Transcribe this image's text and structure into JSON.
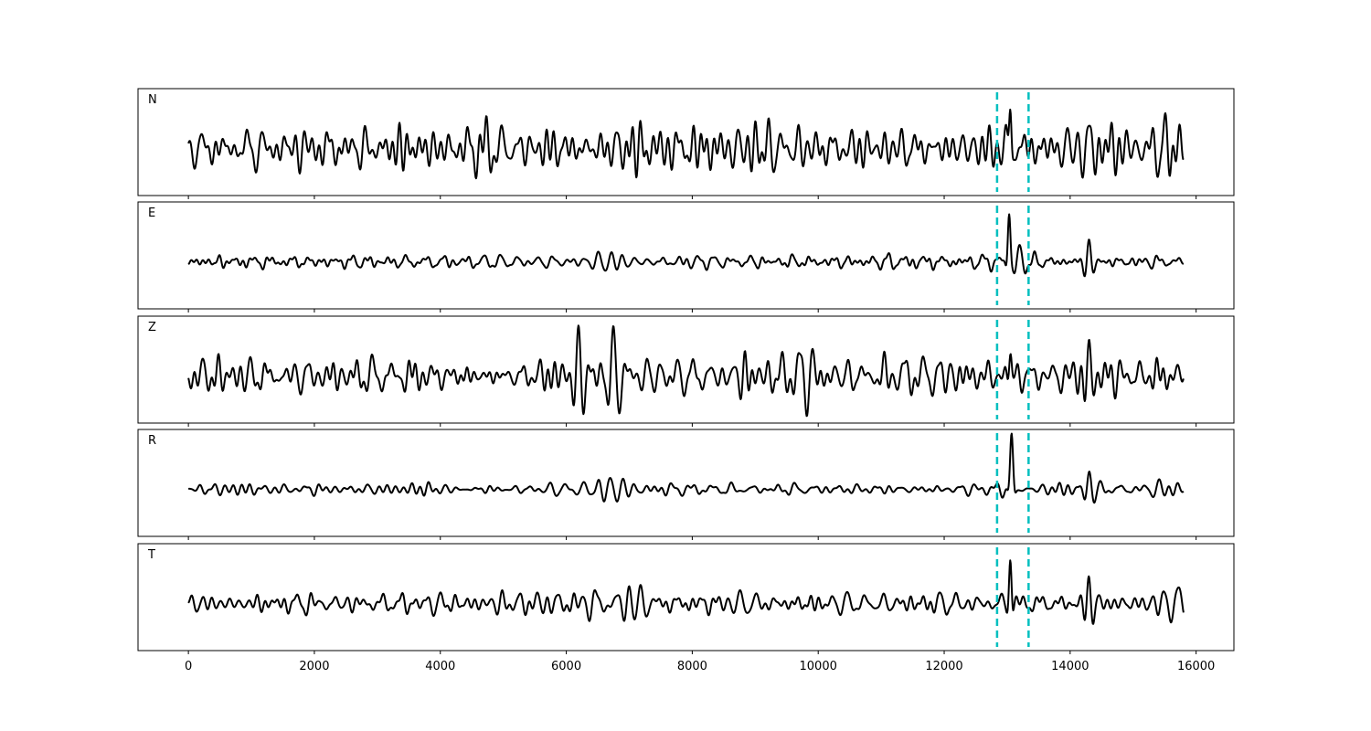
{
  "chart_data": {
    "type": "line",
    "xlim": [
      -800,
      16600
    ],
    "x_ticks": [
      0,
      2000,
      4000,
      6000,
      8000,
      10000,
      12000,
      14000,
      16000
    ],
    "tick_labels": [
      "0",
      "2000",
      "4000",
      "6000",
      "8000",
      "10000",
      "12000",
      "14000",
      "16000"
    ],
    "x_range": [
      0,
      15800
    ],
    "ylim": [
      -1,
      1
    ],
    "markers": {
      "color": "#00bfbf",
      "style": "dashed",
      "x": [
        12840,
        13340
      ]
    },
    "panels": [
      {
        "label": "N",
        "events": [
          {
            "x": 13050,
            "amp": 0.5,
            "width": 35,
            "period": 150
          },
          {
            "x": 7000,
            "amp": 0.3,
            "width": 250,
            "period": 190
          },
          {
            "x": 9200,
            "amp": 0.25,
            "width": 220,
            "period": 180
          },
          {
            "x": 15500,
            "amp": 0.35,
            "width": 250,
            "period": 200
          },
          {
            "x": 14300,
            "amp": 0.3,
            "width": 150,
            "period": 160
          }
        ],
        "noise": 0.16
      },
      {
        "label": "E",
        "events": [
          {
            "x": 13030,
            "amp": 0.55,
            "width": 40,
            "period": 170
          },
          {
            "x": 14300,
            "amp": 0.25,
            "width": 90,
            "period": 150
          },
          {
            "x": 6700,
            "amp": 0.15,
            "width": 300,
            "period": 200
          },
          {
            "x": 13200,
            "amp": 0.15,
            "width": 120,
            "period": 180
          }
        ],
        "noise": 0.05
      },
      {
        "label": "Z",
        "events": [
          {
            "x": 6200,
            "amp": 0.5,
            "width": 150,
            "period": 180
          },
          {
            "x": 6750,
            "amp": 0.45,
            "width": 160,
            "period": 190
          },
          {
            "x": 7300,
            "amp": 0.25,
            "width": 300,
            "period": 200
          },
          {
            "x": 9900,
            "amp": 0.25,
            "width": 150,
            "period": 180
          },
          {
            "x": 13050,
            "amp": 0.3,
            "width": 40,
            "period": 160
          },
          {
            "x": 14300,
            "amp": 0.25,
            "width": 120,
            "period": 150
          }
        ],
        "noise": 0.14
      },
      {
        "label": "R",
        "events": [
          {
            "x": 13070,
            "amp": 0.6,
            "width": 45,
            "period": 190
          },
          {
            "x": 14300,
            "amp": 0.25,
            "width": 110,
            "period": 170
          },
          {
            "x": 6700,
            "amp": 0.12,
            "width": 350,
            "period": 200
          },
          {
            "x": 15400,
            "amp": 0.1,
            "width": 200,
            "period": 180
          }
        ],
        "noise": 0.04
      },
      {
        "label": "T",
        "events": [
          {
            "x": 13050,
            "amp": 0.55,
            "width": 40,
            "period": 160
          },
          {
            "x": 7000,
            "amp": 0.2,
            "width": 300,
            "period": 190
          },
          {
            "x": 14300,
            "amp": 0.3,
            "width": 100,
            "period": 150
          },
          {
            "x": 15500,
            "amp": 0.2,
            "width": 250,
            "period": 200
          }
        ],
        "noise": 0.08
      }
    ]
  }
}
